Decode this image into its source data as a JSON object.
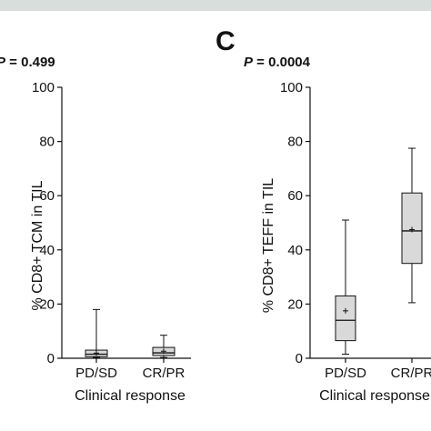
{
  "colors": {
    "background": "#ffffff",
    "top_band": "#d9dedc",
    "box_fill": "#d9d9d9",
    "line": "#111111"
  },
  "chart_data": [
    {
      "type": "box",
      "panel_label": "",
      "p_symbol": "P",
      "p_rest": " = 0.499",
      "ylabel": "% CD8+ TCM in TIL",
      "xlabel": "Clinical response",
      "ylim": [
        0,
        100
      ],
      "yticks": [
        "100",
        "80",
        "60",
        "40",
        "20",
        "0"
      ],
      "categories": [
        "PD/SD",
        "CR/PR"
      ],
      "boxes": [
        {
          "category": "PD/SD",
          "min": 0.3,
          "q1": 0.6,
          "median": 1.5,
          "q3": 3.0,
          "max": 18,
          "mean": 1.9
        },
        {
          "category": "CR/PR",
          "min": 0.3,
          "q1": 1.0,
          "median": 2.0,
          "q3": 4.0,
          "max": 8.5,
          "mean": 2.6
        }
      ]
    },
    {
      "type": "box",
      "panel_label": "C",
      "p_symbol": "P",
      "p_rest": " = 0.0004",
      "ylabel": "% CD8+ TEFF in TIL",
      "xlabel": "Clinical response",
      "ylim": [
        0,
        100
      ],
      "yticks": [
        "100",
        "80",
        "60",
        "40",
        "20",
        "0"
      ],
      "categories": [
        "PD/SD",
        "CR/PR"
      ],
      "boxes": [
        {
          "category": "PD/SD",
          "min": 1.5,
          "q1": 6.5,
          "median": 14,
          "q3": 23,
          "max": 51,
          "mean": 17.5
        },
        {
          "category": "CR/PR",
          "min": 20.5,
          "q1": 35,
          "median": 47,
          "q3": 61,
          "max": 77.5,
          "mean": 47.5
        }
      ]
    }
  ]
}
